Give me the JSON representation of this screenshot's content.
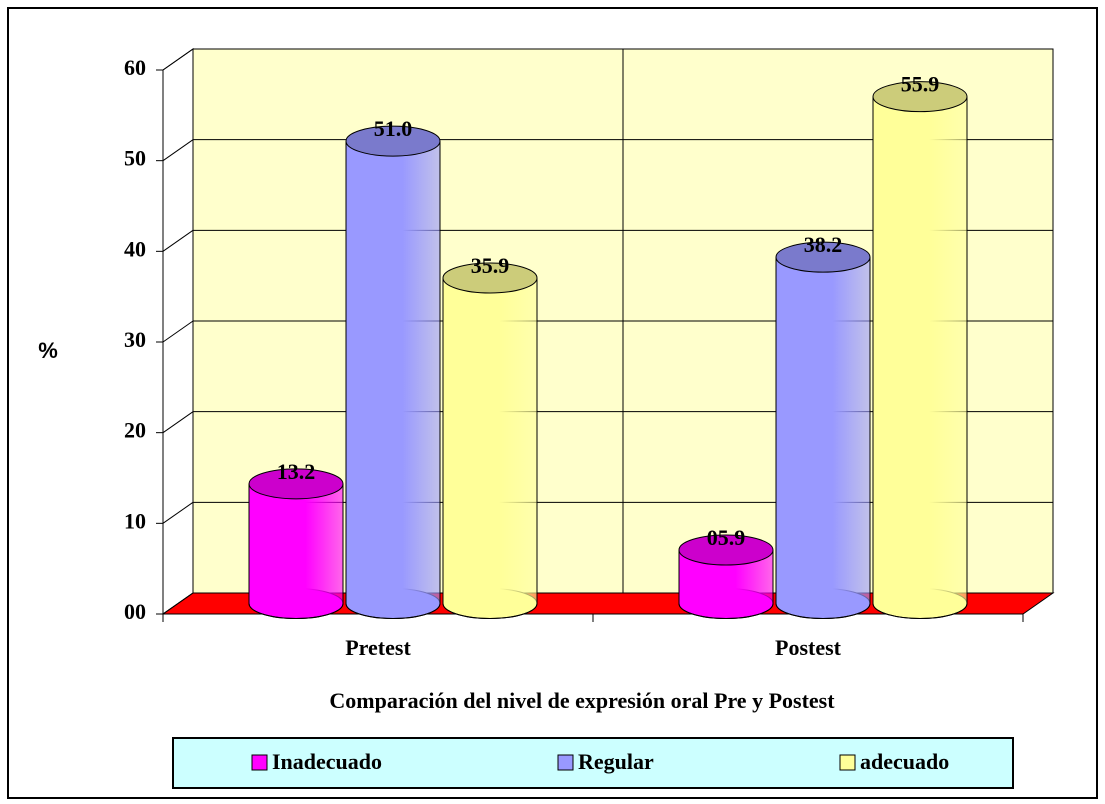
{
  "chart_data": {
    "type": "bar",
    "y_label": "%",
    "x_label": "Comparación del nivel de expresión oral Pre y Postest",
    "categories": [
      "Pretest",
      "Postest"
    ],
    "series": [
      {
        "name": "Inadecuado",
        "color": "#ff00ff",
        "values": [
          13.2,
          5.9
        ],
        "value_labels": [
          "13.2",
          "05.9"
        ]
      },
      {
        "name": "Regular",
        "color": "#9999ff",
        "values": [
          51.0,
          38.2
        ],
        "value_labels": [
          "51.0",
          "38.2"
        ]
      },
      {
        "name": "adecuado",
        "color": "#ffff99",
        "values": [
          35.9,
          55.9
        ],
        "value_labels": [
          "35.9",
          "55.9"
        ]
      }
    ],
    "ylim": [
      0,
      60
    ],
    "yticks": [
      {
        "value": 0,
        "label": "00"
      },
      10,
      20,
      30,
      40,
      50,
      60
    ],
    "grid": true,
    "legend": "bottom",
    "wall_color": "#ffffcc",
    "floor_color": "#ff0000",
    "legend_color": "#ccffff"
  }
}
